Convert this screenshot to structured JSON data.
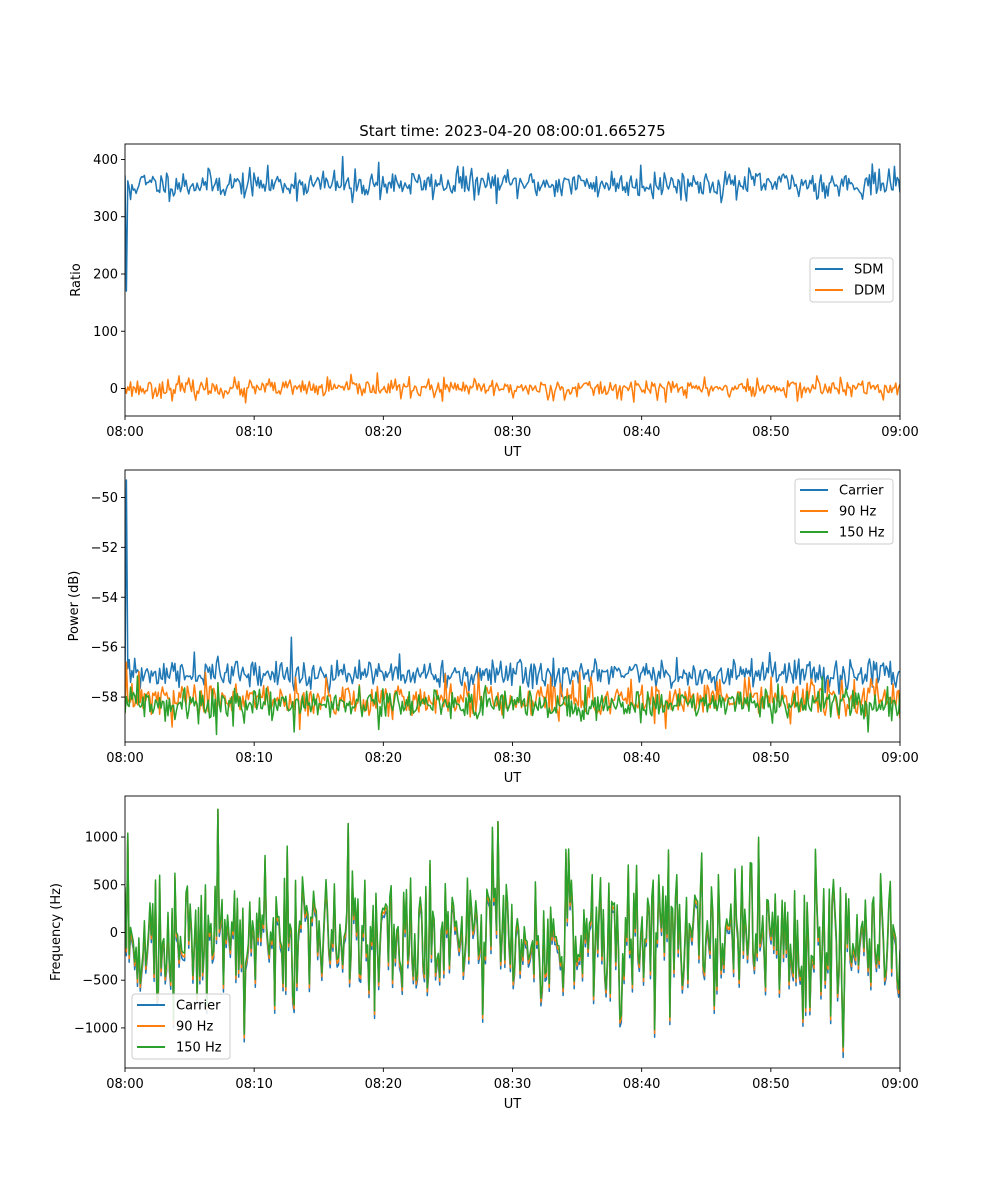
{
  "figure": {
    "title": "Start time: 2023-04-20 08:00:01.665275"
  },
  "colors": {
    "blue": "#1f77b4",
    "orange": "#ff7f0e",
    "green": "#2ca02c"
  },
  "chart_data": [
    {
      "type": "line",
      "title": "Start time: 2023-04-20 08:00:01.665275",
      "xlabel": "UT",
      "ylabel": "Ratio",
      "x_ticks": [
        "08:00",
        "08:10",
        "08:20",
        "08:30",
        "08:40",
        "08:50",
        "09:00"
      ],
      "xlim_minutes": [
        0,
        60
      ],
      "y_ticks": [
        0,
        100,
        200,
        300,
        400
      ],
      "ylim": [
        -48,
        427
      ],
      "legend_position": "center-right",
      "grid": false,
      "series": [
        {
          "name": "SDM",
          "color": "blue",
          "mean": 357,
          "noise": 12,
          "seed": 11,
          "events": [
            [
              0.05,
              372
            ],
            [
              0.15,
              170
            ],
            [
              0.45,
              330
            ],
            [
              16.9,
              405
            ],
            [
              17.6,
              325
            ],
            [
              19.6,
              395
            ],
            [
              25.8,
              388
            ],
            [
              39.9,
              390
            ],
            [
              57.8,
              392
            ]
          ]
        },
        {
          "name": "DDM",
          "color": "orange",
          "mean": 0,
          "noise": 8,
          "seed": 23,
          "events": [
            [
              0.05,
              2
            ],
            [
              4.2,
              22
            ],
            [
              9.3,
              -25
            ],
            [
              19.5,
              27
            ],
            [
              24.6,
              -22
            ],
            [
              41.9,
              -24
            ],
            [
              44.9,
              20
            ],
            [
              53.6,
              22
            ],
            [
              58.7,
              -20
            ]
          ]
        }
      ]
    },
    {
      "type": "line",
      "title": "",
      "xlabel": "UT",
      "ylabel": "Power (dB)",
      "x_ticks": [
        "08:00",
        "08:10",
        "08:20",
        "08:30",
        "08:40",
        "08:50",
        "09:00"
      ],
      "xlim_minutes": [
        0,
        60
      ],
      "y_ticks": [
        -50,
        -52,
        -54,
        -56,
        -58
      ],
      "ylim": [
        -59.8,
        -48.9
      ],
      "legend_position": "top-right",
      "grid": false,
      "series": [
        {
          "name": "Carrier",
          "color": "blue",
          "mean": -57.1,
          "noise": 0.3,
          "seed": 31,
          "events": [
            [
              0.05,
              -57.2
            ],
            [
              0.15,
              -49.3
            ],
            [
              0.3,
              -56.5
            ],
            [
              5.4,
              -56.2
            ],
            [
              12.9,
              -55.6
            ],
            [
              6.5,
              -56.8
            ],
            [
              39.4,
              -56.8
            ]
          ]
        },
        {
          "name": "90 Hz",
          "color": "orange",
          "mean": -58.1,
          "noise": 0.35,
          "seed": 47,
          "events": [
            [
              0.1,
              -56.6
            ],
            [
              6.2,
              -57.0
            ],
            [
              33.0,
              -57.2
            ],
            [
              50.0,
              -57.2
            ],
            [
              3.6,
              -59.2
            ],
            [
              13.5,
              -59.3
            ]
          ]
        },
        {
          "name": "150 Hz",
          "color": "green",
          "mean": -58.3,
          "noise": 0.3,
          "seed": 59,
          "events": [
            [
              7.1,
              -59.5
            ],
            [
              13.1,
              -59.4
            ],
            [
              19.6,
              -59.3
            ],
            [
              57.5,
              -59.4
            ],
            [
              0.4,
              -57.6
            ]
          ]
        }
      ]
    },
    {
      "type": "line",
      "title": "",
      "xlabel": "UT",
      "ylabel": "Frequency (Hz)",
      "x_ticks": [
        "08:00",
        "08:10",
        "08:20",
        "08:30",
        "08:40",
        "08:50",
        "09:00"
      ],
      "xlim_minutes": [
        0,
        60
      ],
      "y_ticks": [
        1000,
        500,
        0,
        -500,
        -1000
      ],
      "ylim": [
        -1420,
        1430
      ],
      "legend_position": "bottom-left",
      "grid": false,
      "series": [
        {
          "name": "Carrier",
          "color": "blue",
          "mean": 0,
          "noise": 360,
          "seed": 73,
          "offset": -80,
          "events": [
            [
              0.2,
              1040
            ],
            [
              7.2,
              1290
            ],
            [
              17.3,
              1140
            ],
            [
              28.9,
              1160
            ],
            [
              55.6,
              -1310
            ],
            [
              27.7,
              -940
            ],
            [
              19.3,
              -900
            ]
          ]
        },
        {
          "name": "90 Hz",
          "color": "orange",
          "mean": 0,
          "noise": 360,
          "seed": 73,
          "offset": -40,
          "events": [
            [
              0.2,
              1040
            ],
            [
              7.2,
              1290
            ],
            [
              17.3,
              1140
            ],
            [
              28.9,
              1160
            ],
            [
              55.6,
              -1250
            ],
            [
              27.7,
              -900
            ],
            [
              19.3,
              -860
            ]
          ]
        },
        {
          "name": "150 Hz",
          "color": "green",
          "mean": 0,
          "noise": 360,
          "seed": 73,
          "offset": 0,
          "events": [
            [
              0.2,
              1040
            ],
            [
              7.2,
              1290
            ],
            [
              17.3,
              1140
            ],
            [
              28.9,
              1160
            ],
            [
              55.6,
              -1200
            ],
            [
              27.7,
              -860
            ],
            [
              19.3,
              -820
            ]
          ]
        }
      ]
    }
  ]
}
